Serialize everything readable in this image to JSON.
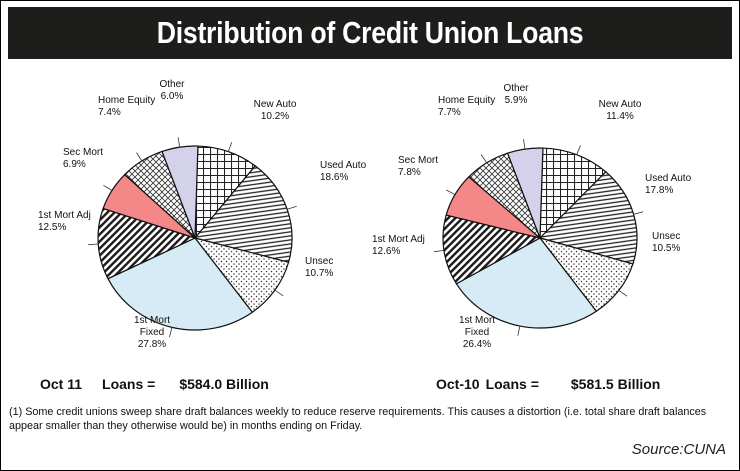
{
  "title": "Distribution of Credit Union Loans",
  "chart_data": [
    {
      "type": "pie",
      "summary": {
        "label": "Oct 11",
        "loans_label": "Loans =",
        "amount": "$584.0 Billion"
      },
      "slices": [
        {
          "name": "New Auto",
          "value": 10.2,
          "label": "10.2%",
          "fill": "grid"
        },
        {
          "name": "Used Auto",
          "value": 18.6,
          "label": "18.6%",
          "fill": "hlines"
        },
        {
          "name": "Unsec",
          "value": 10.7,
          "label": "10.7%",
          "fill": "dots"
        },
        {
          "name": "1st Mort Fixed",
          "value": 27.8,
          "label": "27.8%",
          "fill": "#d6ebf5"
        },
        {
          "name": "1st Mort Adj",
          "value": 12.5,
          "label": "12.5%",
          "fill": "diag"
        },
        {
          "name": "Sec Mort",
          "value": 6.9,
          "label": "6.9%",
          "fill": "#f48787"
        },
        {
          "name": "Home Equity",
          "value": 7.4,
          "label": "7.4%",
          "fill": "crosshatch"
        },
        {
          "name": "Other",
          "value": 6.0,
          "label": "6.0%",
          "fill": "#d3d2ea"
        }
      ]
    },
    {
      "type": "pie",
      "summary": {
        "label": "Oct-10",
        "loans_label": "Loans =",
        "amount": "$581.5 Billion"
      },
      "slices": [
        {
          "name": "New Auto",
          "value": 11.4,
          "label": "11.4%",
          "fill": "grid"
        },
        {
          "name": "Used Auto",
          "value": 17.8,
          "label": "17.8%",
          "fill": "hlines"
        },
        {
          "name": "Unsec",
          "value": 10.5,
          "label": "10.5%",
          "fill": "dots"
        },
        {
          "name": "1st Mort Fixed",
          "value": 26.4,
          "label": "26.4%",
          "fill": "#d6ebf5"
        },
        {
          "name": "1st Mort Adj",
          "value": 12.6,
          "label": "12.6%",
          "fill": "diag"
        },
        {
          "name": "Sec Mort",
          "value": 7.8,
          "label": "7.8%",
          "fill": "#f48787"
        },
        {
          "name": "Home Equity",
          "value": 7.7,
          "label": "7.7%",
          "fill": "crosshatch"
        },
        {
          "name": "Other",
          "value": 5.9,
          "label": "5.9%",
          "fill": "#d3d2ea"
        }
      ]
    }
  ],
  "footnote": "(1) Some credit unions sweep share draft balances weekly to reduce reserve requirements. This causes a distortion (i.e. total share draft balances appear smaller than they otherwise would be) in months ending on Friday.",
  "source": "Source:CUNA"
}
